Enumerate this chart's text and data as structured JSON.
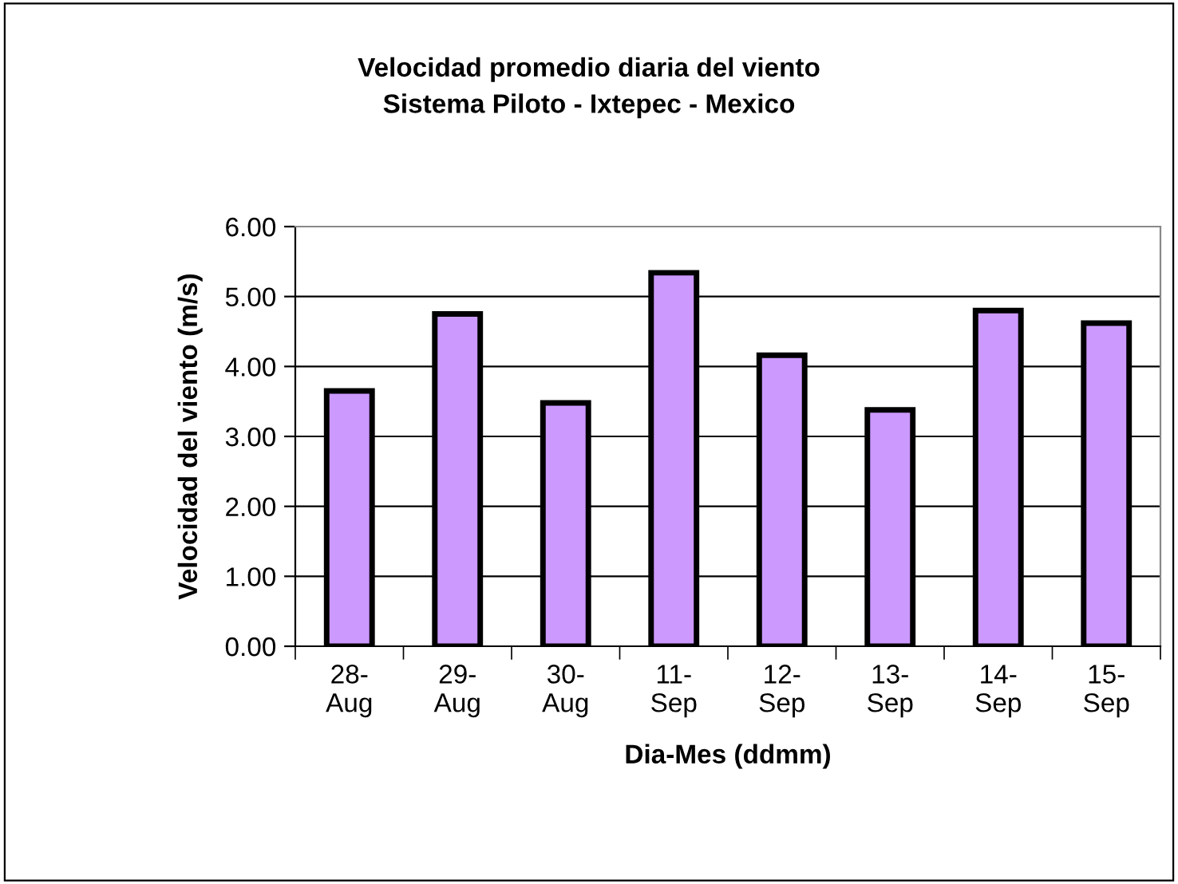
{
  "chart_data": {
    "type": "bar",
    "title": "Velocidad promedio diaria del viento\nSistema Piloto - Ixtepec - Mexico",
    "xlabel": "Dia-Mes (ddmm)",
    "ylabel": "Velocidad del viento (m/s)",
    "categories": [
      "28-\nAug",
      "29-\nAug",
      "30-\nAug",
      "11-\nSep",
      "12-\nSep",
      "13-\nSep",
      "14-\nSep",
      "15-\nSep"
    ],
    "values": [
      3.65,
      4.75,
      3.48,
      5.34,
      4.16,
      3.38,
      4.8,
      4.62
    ],
    "color": "#cc99ff",
    "ylim": [
      0,
      6
    ],
    "yticks": [
      {
        "value": 0,
        "label": "0.00"
      },
      {
        "value": 1,
        "label": "1.00"
      },
      {
        "value": 2,
        "label": "2.00"
      },
      {
        "value": 3,
        "label": "3.00"
      },
      {
        "value": 4,
        "label": "4.00"
      },
      {
        "value": 5,
        "label": "5.00"
      },
      {
        "value": 6,
        "label": "6.00"
      }
    ],
    "grid": "y"
  }
}
